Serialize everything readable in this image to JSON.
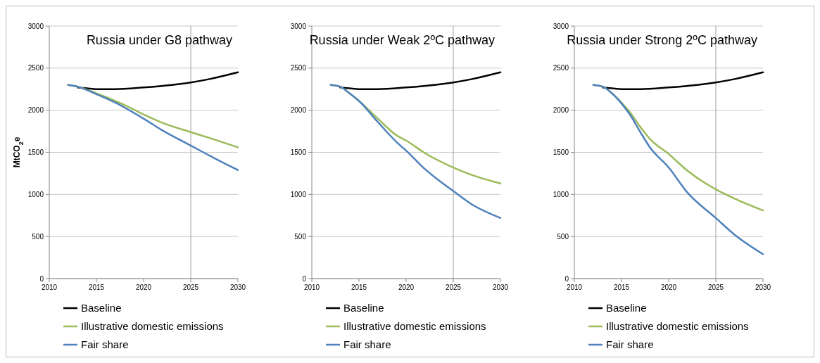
{
  "chart_data": [
    {
      "type": "line",
      "title": "Russia under G8 pathway",
      "ylabel": "MtCO$_{2}$e",
      "xlim": [
        2010,
        2030
      ],
      "xticks": [
        2010,
        2015,
        2020,
        2025,
        2030
      ],
      "ylim": [
        0,
        3000
      ],
      "yticks": [
        0,
        500,
        1000,
        1500,
        2000,
        2500,
        3000
      ],
      "grid": "y",
      "legend": "bottom",
      "line_style": "solid",
      "ref_lines": [
        {
          "axis": "x",
          "value": 2025,
          "color": "#a0a0a0"
        }
      ],
      "series": [
        {
          "name": "Baseline",
          "color": "#000000",
          "x": [
            2013,
            2014,
            2015,
            2017,
            2020,
            2023,
            2025,
            2027,
            2030
          ],
          "values": [
            2270,
            2260,
            2250,
            2250,
            2270,
            2300,
            2330,
            2370,
            2450
          ]
        },
        {
          "name": "Illustrative domestic emissions",
          "color": "#9bbb59",
          "x": [
            2012,
            2013,
            2015,
            2017,
            2018,
            2020,
            2022,
            2025,
            2027,
            2030
          ],
          "values": [
            2300,
            2280,
            2200,
            2110,
            2060,
            1950,
            1850,
            1740,
            1670,
            1560
          ]
        },
        {
          "name": "Fair share",
          "color": "#4f81bd",
          "x": [
            2012,
            2013,
            2015,
            2017,
            2020,
            2022,
            2025,
            2027,
            2030
          ],
          "values": [
            2300,
            2280,
            2190,
            2090,
            1900,
            1760,
            1580,
            1460,
            1290
          ]
        }
      ]
    },
    {
      "type": "line",
      "title": "Russia under Weak 2ºC pathway",
      "xlim": [
        2010,
        2030
      ],
      "xticks": [
        2010,
        2015,
        2020,
        2025,
        2030
      ],
      "ylim": [
        0,
        3000
      ],
      "yticks": [
        0,
        500,
        1000,
        1500,
        2000,
        2500,
        3000
      ],
      "grid": "y",
      "legend": "bottom",
      "line_style": "solid",
      "ref_lines": [
        {
          "axis": "x",
          "value": 2025,
          "color": "#a0a0a0"
        }
      ],
      "series": [
        {
          "name": "Baseline",
          "color": "#000000",
          "x": [
            2013,
            2014,
            2015,
            2017,
            2020,
            2023,
            2025,
            2027,
            2030
          ],
          "values": [
            2270,
            2260,
            2250,
            2250,
            2270,
            2300,
            2330,
            2370,
            2450
          ]
        },
        {
          "name": "Illustrative domestic emissions",
          "color": "#9bbb59",
          "x": [
            2012,
            2013,
            2014,
            2015,
            2017,
            2019,
            2020,
            2022,
            2025,
            2027,
            2030
          ],
          "values": [
            2300,
            2280,
            2200,
            2110,
            1900,
            1700,
            1640,
            1490,
            1320,
            1230,
            1130
          ]
        },
        {
          "name": "Fair share",
          "color": "#4f81bd",
          "x": [
            2012,
            2013,
            2014,
            2015,
            2017,
            2019,
            2020,
            2022,
            2025,
            2027,
            2030
          ],
          "values": [
            2300,
            2280,
            2200,
            2110,
            1860,
            1620,
            1520,
            1300,
            1040,
            880,
            720
          ]
        }
      ]
    },
    {
      "type": "line",
      "title": "Russia under Strong 2ºC pathway",
      "xlim": [
        2010,
        2030
      ],
      "xticks": [
        2010,
        2015,
        2020,
        2025,
        2030
      ],
      "ylim": [
        0,
        3000
      ],
      "yticks": [
        0,
        500,
        1000,
        1500,
        2000,
        2500,
        3000
      ],
      "grid": "y",
      "legend": "bottom",
      "line_style": "solid",
      "ref_lines": [
        {
          "axis": "x",
          "value": 2025,
          "color": "#a0a0a0"
        }
      ],
      "series": [
        {
          "name": "Baseline",
          "color": "#000000",
          "x": [
            2013,
            2014,
            2015,
            2017,
            2020,
            2023,
            2025,
            2027,
            2030
          ],
          "values": [
            2270,
            2260,
            2250,
            2250,
            2270,
            2300,
            2330,
            2370,
            2450
          ]
        },
        {
          "name": "Illustrative domestic emissions",
          "color": "#9bbb59",
          "x": [
            2012,
            2013,
            2014,
            2015,
            2016,
            2017,
            2018,
            2020,
            2022,
            2025,
            2027,
            2030
          ],
          "values": [
            2300,
            2280,
            2200,
            2090,
            1960,
            1800,
            1660,
            1480,
            1280,
            1060,
            950,
            810
          ]
        },
        {
          "name": "Fair share",
          "color": "#4f81bd",
          "x": [
            2012,
            2013,
            2014,
            2015,
            2016,
            2017,
            2018,
            2020,
            2022,
            2025,
            2027,
            2030
          ],
          "values": [
            2300,
            2280,
            2200,
            2080,
            1930,
            1740,
            1560,
            1320,
            1020,
            720,
            520,
            290
          ]
        }
      ]
    }
  ]
}
